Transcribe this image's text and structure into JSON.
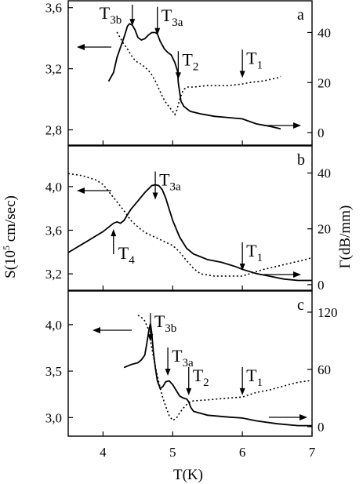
{
  "figure": {
    "xlabel": "T(K)",
    "ylabel_left": {
      "main": "S(10",
      "sup": "5",
      "rest": " cm/sec)"
    },
    "ylabel_right": "Γ(dB/mm)"
  },
  "chart_data": [
    {
      "type": "line",
      "panel": "a",
      "xlim": [
        3.5,
        7
      ],
      "ylim_left": [
        2.7,
        3.65
      ],
      "ylim_right": [
        -5,
        53
      ],
      "yticks_left": [
        "2,8",
        "3,2",
        "3,6"
      ],
      "yticks_left_values": [
        2.8,
        3.2,
        3.6
      ],
      "yticks_right": [
        "0",
        "20",
        "40"
      ],
      "yticks_right_values": [
        0,
        20,
        40
      ],
      "series": [
        {
          "axis": "right",
          "style": "solid",
          "x": [
            4.08,
            4.15,
            4.2,
            4.25,
            4.3,
            4.35,
            4.38,
            4.42,
            4.46,
            4.5,
            4.55,
            4.6,
            4.65,
            4.7,
            4.75,
            4.78,
            4.82,
            4.88,
            4.93,
            4.98,
            5.03,
            5.07,
            5.08,
            5.1,
            5.12,
            5.16,
            5.25,
            5.4,
            5.6,
            5.8,
            6.0,
            6.2,
            6.4,
            6.55
          ],
          "y": [
            20.5,
            24,
            30,
            34,
            38,
            42.5,
            43.5,
            43,
            41,
            38,
            37,
            37.5,
            39,
            40,
            40,
            39.5,
            36.5,
            33.5,
            32,
            31,
            28,
            24.5,
            20,
            16,
            12.5,
            10.5,
            8.5,
            7.5,
            6.5,
            6,
            5.5,
            3.5,
            2.5,
            1.5
          ]
        },
        {
          "axis": "left",
          "style": "dotted",
          "x": [
            4.2,
            4.25,
            4.3,
            4.35,
            4.4,
            4.45,
            4.5,
            4.55,
            4.6,
            4.65,
            4.7,
            4.75,
            4.8,
            4.85,
            4.9,
            4.95,
            5.0,
            5.03,
            5.06,
            5.1,
            5.15,
            5.2,
            5.3,
            5.5,
            5.8,
            6.0,
            6.1,
            6.3,
            6.5,
            6.55
          ],
          "y": [
            3.44,
            3.4,
            3.36,
            3.33,
            3.29,
            3.26,
            3.24,
            3.23,
            3.21,
            3.19,
            3.16,
            3.12,
            3.07,
            3.02,
            2.98,
            2.95,
            2.92,
            2.9,
            2.93,
            3.0,
            3.06,
            3.08,
            3.08,
            3.09,
            3.09,
            3.1,
            3.11,
            3.12,
            3.14,
            3.15
          ]
        }
      ],
      "annotations": [
        {
          "main": "T",
          "sub": "3b",
          "x": 4.42,
          "tip": 3.48
        },
        {
          "main": "T",
          "sub": "3a",
          "x": 4.78,
          "tip": 3.42
        },
        {
          "main": "T",
          "sub": "2",
          "x": 5.08,
          "tip": 3.13
        },
        {
          "main": "T",
          "sub": "1",
          "x": 6.0,
          "tip": 3.14
        }
      ],
      "axis_arrows": [
        {
          "direction": "left"
        },
        {
          "direction": "right"
        }
      ]
    },
    {
      "type": "line",
      "panel": "b",
      "xlim": [
        3.5,
        7
      ],
      "ylim_left": [
        3.05,
        4.38
      ],
      "ylim_right": [
        -2,
        50
      ],
      "yticks_left": [
        "3,2",
        "3,6",
        "4,0"
      ],
      "yticks_left_values": [
        3.2,
        3.6,
        4.0
      ],
      "yticks_right": [
        "0",
        "20",
        "40"
      ],
      "yticks_right_values": [
        0,
        20,
        40
      ],
      "series": [
        {
          "axis": "right",
          "style": "solid",
          "x": [
            3.5,
            3.6,
            3.7,
            3.8,
            3.9,
            4.0,
            4.05,
            4.1,
            4.15,
            4.2,
            4.25,
            4.3,
            4.35,
            4.4,
            4.5,
            4.6,
            4.7,
            4.75,
            4.8,
            4.85,
            4.9,
            4.95,
            5.0,
            5.1,
            5.2,
            5.3,
            5.5,
            5.7,
            5.9,
            6.0,
            6.2,
            6.4,
            6.6,
            6.8,
            7.0
          ],
          "y": [
            11.5,
            13,
            14.5,
            16,
            17.5,
            19,
            20,
            21,
            22,
            22.5,
            22,
            23,
            25,
            27,
            30,
            33,
            35.5,
            35.8,
            35.5,
            34,
            31,
            27,
            23,
            17,
            13,
            11,
            9,
            8,
            6.5,
            5.5,
            4,
            3,
            2,
            1.5,
            1.5
          ]
        },
        {
          "axis": "left",
          "style": "dotted",
          "x": [
            3.5,
            3.7,
            3.9,
            4.0,
            4.05,
            4.1,
            4.2,
            4.3,
            4.4,
            4.5,
            4.6,
            4.7,
            4.8,
            4.9,
            5.0,
            5.1,
            5.2,
            5.3,
            5.4,
            5.6,
            5.8,
            6.0,
            6.1,
            6.3,
            6.5,
            6.7,
            6.9,
            7.0
          ],
          "y": [
            4.12,
            4.1,
            4.06,
            4.02,
            3.98,
            3.94,
            3.86,
            3.78,
            3.69,
            3.63,
            3.58,
            3.55,
            3.52,
            3.49,
            3.46,
            3.4,
            3.32,
            3.25,
            3.2,
            3.18,
            3.18,
            3.18,
            3.2,
            3.24,
            3.27,
            3.3,
            3.33,
            3.35
          ]
        }
      ],
      "annotations": [
        {
          "main": "T",
          "sub": "3a",
          "x": 4.75,
          "tip": 3.88
        },
        {
          "main": "T",
          "sub": "1",
          "x": 6.0,
          "tip": 3.23
        },
        {
          "main": "T",
          "sub": "4",
          "x": 4.15,
          "tip": 3.61,
          "from_below": true
        }
      ],
      "axis_arrows": [
        {
          "direction": "left"
        },
        {
          "direction": "right"
        }
      ]
    },
    {
      "type": "line",
      "panel": "c",
      "xlim": [
        3.5,
        7
      ],
      "ylim_left": [
        2.8,
        4.37
      ],
      "ylim_right": [
        -10,
        143
      ],
      "yticks_left": [
        "3,0",
        "3,5",
        "4,0"
      ],
      "yticks_left_values": [
        3.0,
        3.5,
        4.0
      ],
      "yticks_right": [
        "0",
        "60",
        "120"
      ],
      "yticks_right_values": [
        0,
        60,
        120
      ],
      "series": [
        {
          "axis": "right",
          "style": "solid",
          "x": [
            4.3,
            4.4,
            4.5,
            4.55,
            4.6,
            4.63,
            4.66,
            4.68,
            4.7,
            4.72,
            4.75,
            4.78,
            4.82,
            4.86,
            4.9,
            4.95,
            5.0,
            5.05,
            5.1,
            5.15,
            5.2,
            5.23,
            5.26,
            5.3,
            5.5,
            5.8,
            6.0,
            6.2,
            6.5,
            6.8,
            7.0
          ],
          "y": [
            62,
            65,
            67,
            70,
            75,
            88,
            102,
            108,
            98,
            80,
            62,
            48,
            40,
            42,
            47,
            48,
            44,
            38,
            32,
            30,
            29,
            26,
            20,
            16,
            12,
            10,
            9,
            6,
            3,
            1,
            1
          ]
        },
        {
          "axis": "left",
          "style": "dotted",
          "x": [
            4.5,
            4.55,
            4.6,
            4.65,
            4.7,
            4.75,
            4.8,
            4.85,
            4.9,
            4.95,
            5.0,
            5.05,
            5.1,
            5.15,
            5.2,
            5.25,
            5.3,
            5.5,
            5.8,
            6.0,
            6.2,
            6.4,
            6.6,
            6.8,
            7.0
          ],
          "y": [
            4.1,
            4.08,
            4.04,
            3.95,
            3.75,
            3.55,
            3.38,
            3.23,
            3.12,
            3.02,
            2.97,
            2.99,
            3.05,
            3.1,
            3.14,
            3.17,
            3.18,
            3.19,
            3.21,
            3.22,
            3.27,
            3.3,
            3.34,
            3.38,
            3.4
          ]
        }
      ],
      "annotations": [
        {
          "main": "T",
          "sub": "3b",
          "x": 4.68,
          "tip": 3.82
        },
        {
          "main": "T",
          "sub": "3a",
          "x": 4.93,
          "tip": 3.45
        },
        {
          "main": "T",
          "sub": "2",
          "x": 5.23,
          "tip": 3.24
        },
        {
          "main": "T",
          "sub": "1",
          "x": 6.0,
          "tip": 3.24
        }
      ],
      "axis_arrows": [
        {
          "direction": "left"
        },
        {
          "direction": "right"
        }
      ]
    }
  ],
  "xticks": [
    "4",
    "5",
    "6",
    "7"
  ],
  "xtick_values": [
    4,
    5,
    6,
    7
  ]
}
